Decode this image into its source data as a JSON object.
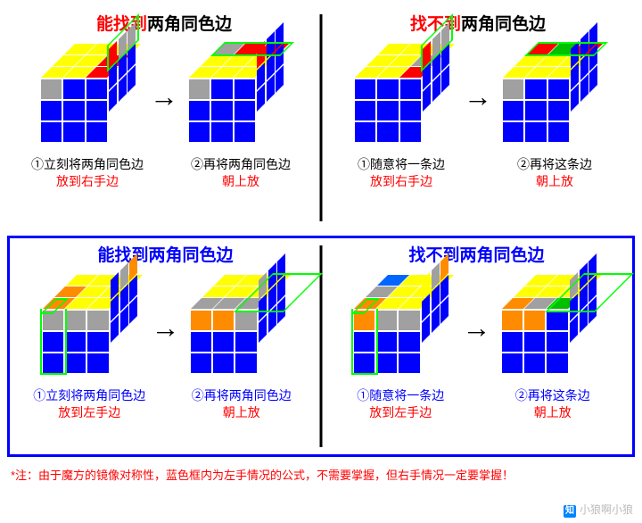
{
  "colors": {
    "Y": "#ffff00",
    "R": "#ff0000",
    "B": "#0000ff",
    "G": "#a0a0a0",
    "O": "#ff8c00",
    "W": "#ffffff",
    "Gr": "#00c000",
    "Bl": "#0066ff"
  },
  "footer": "*注：由于魔方的镜像对称性，蓝色框内为左手情况的公式，不需要掌握，但右手情况一定要掌握！",
  "watermark": "小狼啊小狼",
  "rows": [
    {
      "cls": "r1",
      "panels": [
        {
          "title": {
            "pre": "",
            "mid": "能找到",
            "post": "两角同色边",
            "midcolor": "red"
          },
          "cube1": {
            "top": [
              "Y",
              "Y",
              "Y",
              "Y",
              "Y",
              "R",
              "Y",
              "Y",
              "R"
            ],
            "front": [
              "G",
              "B",
              "B",
              "B",
              "B",
              "B",
              "B",
              "B",
              "B"
            ],
            "right": [
              "R",
              "G",
              "G",
              "B",
              "B",
              "B",
              "B",
              "B",
              "B"
            ],
            "hl": "right-top"
          },
          "cube2": {
            "top": [
              "G",
              "R",
              "R",
              "Y",
              "Y",
              "Y",
              "Y",
              "Y",
              "Y"
            ],
            "front": [
              "G",
              "B",
              "B",
              "B",
              "B",
              "B",
              "B",
              "B",
              "B"
            ],
            "right": [
              "R",
              "B",
              "B",
              "B",
              "B",
              "B",
              "B",
              "B",
              "B"
            ],
            "hl": "top-back"
          },
          "cap1": {
            "l1": "①立刻将两角同色边",
            "l2": "放到右手边"
          },
          "cap2": {
            "l1": "②再将两角同色边",
            "l2": "朝上放"
          }
        },
        {
          "title": {
            "pre": "",
            "mid": "找不到",
            "post": "两角同色边",
            "midcolor": "red"
          },
          "cube1": {
            "top": [
              "Y",
              "Y",
              "Y",
              "Y",
              "Y",
              "G",
              "Y",
              "Y",
              "R"
            ],
            "front": [
              "B",
              "B",
              "B",
              "B",
              "B",
              "B",
              "B",
              "B",
              "B"
            ],
            "right": [
              "R",
              "G",
              "G",
              "B",
              "B",
              "B",
              "B",
              "B",
              "B"
            ],
            "hl": "right-top"
          },
          "cube2": {
            "top": [
              "R",
              "Gr",
              "R",
              "Y",
              "Y",
              "Y",
              "Y",
              "Y",
              "Y"
            ],
            "front": [
              "G",
              "B",
              "B",
              "B",
              "B",
              "B",
              "B",
              "B",
              "B"
            ],
            "right": [
              "B",
              "B",
              "B",
              "B",
              "B",
              "B",
              "B",
              "B",
              "B"
            ],
            "hl": "top-back"
          },
          "cap1": {
            "l1": "①随意将一条边",
            "l2": "放到右手边"
          },
          "cap2": {
            "l1": "②再将这条边",
            "l2": "朝上放"
          }
        }
      ]
    },
    {
      "cls": "r2",
      "panels": [
        {
          "title": {
            "pre": "能找到两角同色边",
            "mid": "",
            "post": ""
          },
          "cube1": {
            "top": [
              "Y",
              "Y",
              "Y",
              "O",
              "Y",
              "Y",
              "O",
              "Y",
              "Y"
            ],
            "front": [
              "G",
              "G",
              "G",
              "B",
              "B",
              "B",
              "B",
              "B",
              "B"
            ],
            "right": [
              "B",
              "G",
              "O",
              "B",
              "B",
              "B",
              "B",
              "B",
              "B"
            ],
            "hl": "left-top"
          },
          "cube2": {
            "top": [
              "Y",
              "Y",
              "Y",
              "Y",
              "Y",
              "Y",
              "G",
              "G",
              "G"
            ],
            "front": [
              "O",
              "O",
              "G",
              "B",
              "B",
              "B",
              "B",
              "B",
              "B"
            ],
            "right": [
              "G",
              "B",
              "B",
              "B",
              "B",
              "B",
              "B",
              "B",
              "B"
            ],
            "hl": "top-right"
          },
          "cap1": {
            "l1": "①立刻将两角同色边",
            "l2": "放到左手边"
          },
          "cap2": {
            "l1": "②再将两角同色边",
            "l2": "朝上放"
          }
        },
        {
          "title": {
            "pre": "找不到两角同色边",
            "mid": "",
            "post": ""
          },
          "cube1": {
            "top": [
              "Bl",
              "Y",
              "Y",
              "G",
              "Y",
              "Y",
              "O",
              "Y",
              "Y"
            ],
            "front": [
              "O",
              "G",
              "G",
              "B",
              "B",
              "B",
              "B",
              "B",
              "B"
            ],
            "right": [
              "Y",
              "G",
              "O",
              "B",
              "B",
              "B",
              "B",
              "B",
              "B"
            ],
            "hl": "left-top"
          },
          "cube2": {
            "top": [
              "Y",
              "Y",
              "Y",
              "Y",
              "Y",
              "Y",
              "O",
              "G",
              "Gr"
            ],
            "front": [
              "O",
              "O",
              "B",
              "B",
              "B",
              "B",
              "B",
              "B",
              "B"
            ],
            "right": [
              "G",
              "B",
              "B",
              "B",
              "B",
              "B",
              "B",
              "B",
              "B"
            ],
            "hl": "top-right"
          },
          "cap1": {
            "l1": "①随意将一条边",
            "l2": "放到左手边"
          },
          "cap2": {
            "l1": "②再将这条边",
            "l2": "朝上放"
          }
        }
      ]
    }
  ]
}
